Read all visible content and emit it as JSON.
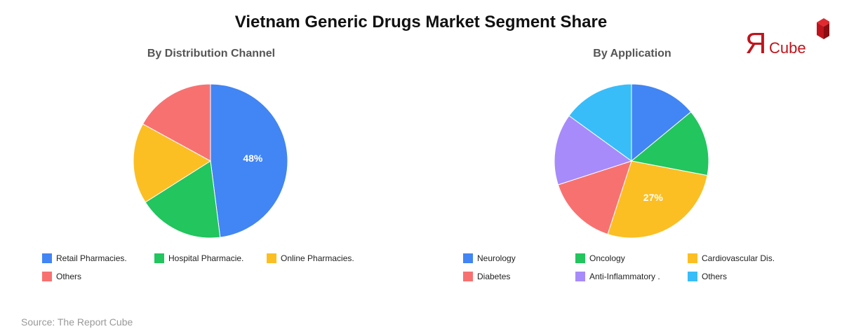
{
  "title": "Vietnam Generic Drugs Market Segment Share",
  "logo": {
    "letter": "Я",
    "word": "Cube",
    "color": "#c0141c"
  },
  "source": "Source: The Report Cube",
  "chart_data": [
    {
      "type": "pie",
      "title": "By Distribution Channel",
      "start_angle_deg": 0,
      "direction": "clockwise",
      "slices": [
        {
          "label": "Retail Pharmacies.",
          "value": 48,
          "color": "#4285f4",
          "data_label": "48%"
        },
        {
          "label": "Hospital Pharmacie.",
          "value": 18,
          "color": "#22c55e"
        },
        {
          "label": "Online Pharmacies.",
          "value": 17,
          "color": "#fbbf24"
        },
        {
          "label": "Others",
          "value": 17,
          "color": "#f87171"
        }
      ],
      "legend_position": "bottom"
    },
    {
      "type": "pie",
      "title": "By Application",
      "start_angle_deg": 0,
      "direction": "clockwise",
      "slices": [
        {
          "label": "Neurology",
          "value": 14,
          "color": "#4285f4"
        },
        {
          "label": "Oncology",
          "value": 14,
          "color": "#22c55e"
        },
        {
          "label": "Cardiovascular Dis.",
          "value": 27,
          "color": "#fbbf24",
          "data_label": "27%"
        },
        {
          "label": "Diabetes",
          "value": 15,
          "color": "#f87171"
        },
        {
          "label": "Anti-Inflammatory .",
          "value": 15,
          "color": "#a78bfa"
        },
        {
          "label": "Others",
          "value": 15,
          "color": "#38bdf8"
        }
      ],
      "legend_position": "bottom"
    }
  ]
}
